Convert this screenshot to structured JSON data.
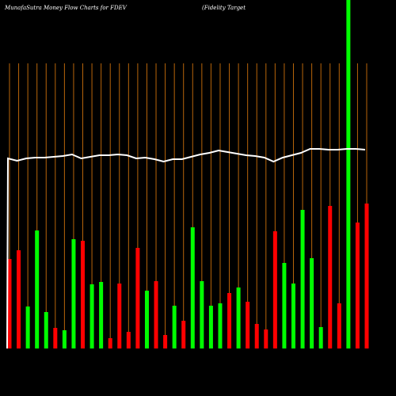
{
  "chart_data": {
    "type": "bar",
    "title": "MunafaSutra  Money Flow  Charts for FDEV",
    "subtitle": "(Fidelity Target",
    "values": [
      113,
      124,
      53,
      149,
      46,
      26,
      23,
      138,
      136,
      81,
      84,
      13,
      82,
      21,
      127,
      73,
      85,
      17,
      54,
      35,
      153,
      85,
      54,
      57,
      70,
      77,
      59,
      31,
      24,
      148,
      108,
      82,
      175,
      114,
      27,
      180,
      57,
      440,
      159,
      183
    ],
    "colors": [
      "#ff0000",
      "#ff0000",
      "#00ff00",
      "#00ff00",
      "#00ff00",
      "#ff0000",
      "#00ff00",
      "#00ff00",
      "#ff0000",
      "#00ff00",
      "#00ff00",
      "#ff0000",
      "#ff0000",
      "#ff0000",
      "#ff0000",
      "#00ff00",
      "#ff0000",
      "#ff0000",
      "#00ff00",
      "#ff0000",
      "#00ff00",
      "#00ff00",
      "#00ff00",
      "#00ff00",
      "#ff0000",
      "#00ff00",
      "#ff0000",
      "#ff0000",
      "#ff0000",
      "#ff0000",
      "#00ff00",
      "#00ff00",
      "#00ff00",
      "#00ff00",
      "#00ff00",
      "#ff0000",
      "#ff0000",
      "#00ff00",
      "#ff0000",
      "#ff0000"
    ],
    "line": {
      "color": "#ffffff",
      "values": [
        240,
        237,
        240,
        241,
        241,
        242,
        243,
        245,
        240,
        242,
        244,
        244,
        245,
        244,
        240,
        241,
        239,
        236,
        239,
        239,
        242,
        245,
        247,
        250,
        248,
        246,
        244,
        243,
        241,
        236,
        241,
        244,
        247,
        252,
        252,
        251,
        251,
        252,
        252,
        251
      ]
    },
    "gridline_color": "#b8650a"
  }
}
